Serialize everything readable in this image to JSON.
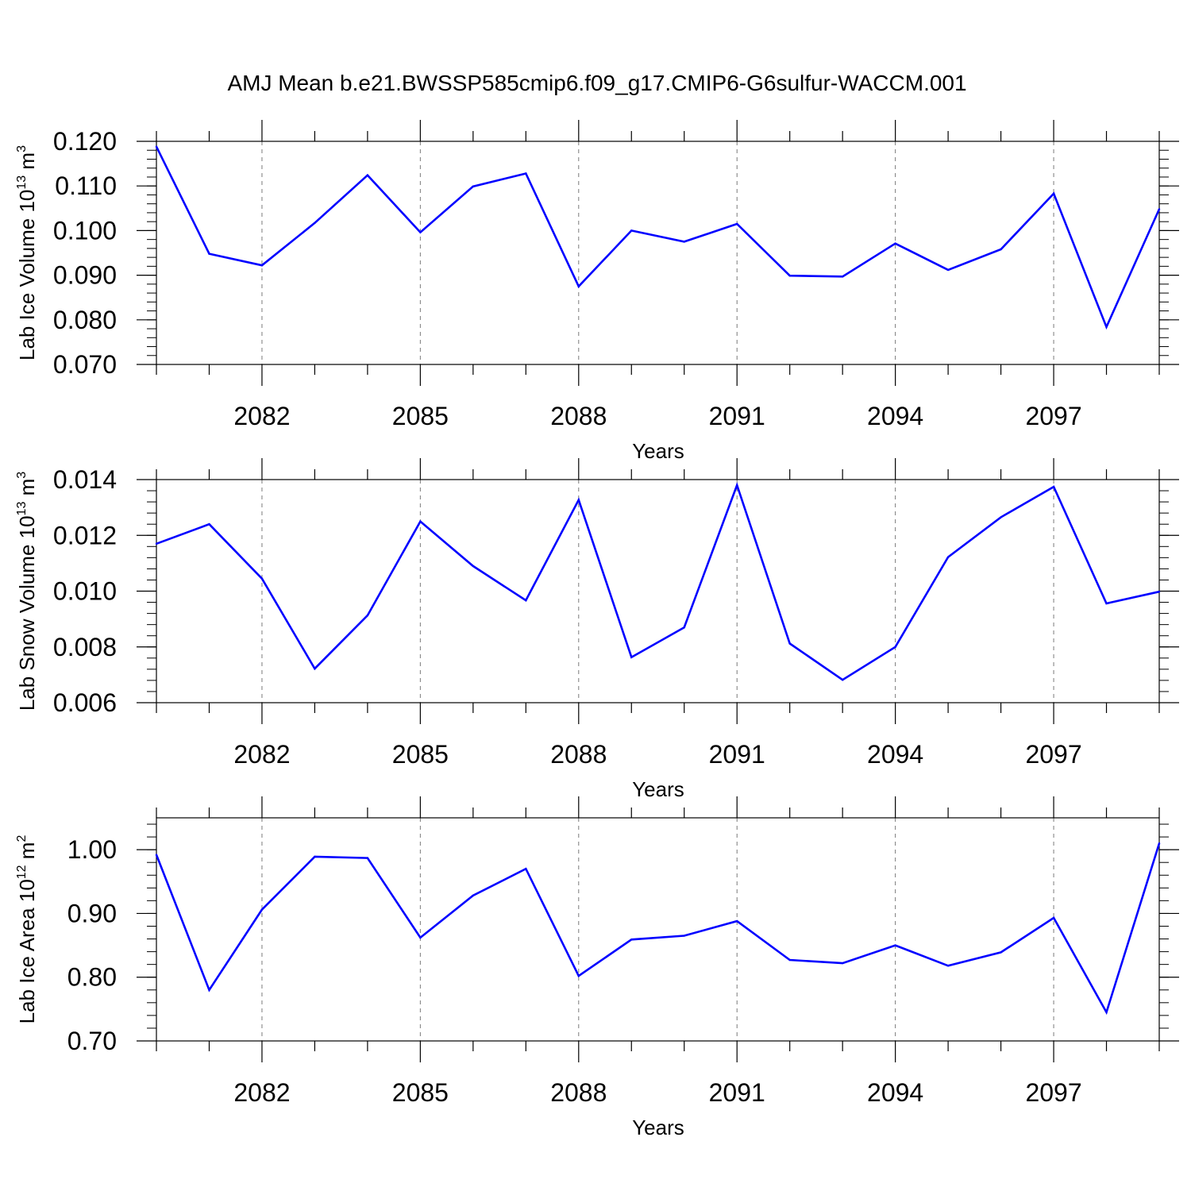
{
  "figure": {
    "title": "AMJ Mean b.e21.BWSSP585cmip6.f09_g17.CMIP6-G6sulfur-WACCM.001"
  },
  "chart_data": [
    {
      "type": "line",
      "ylabel": {
        "text": "Lab Ice Volume 10",
        "exponent": "13",
        "unit": " m",
        "unit_exponent": "3"
      },
      "xlabel": "Years",
      "x": [
        2080,
        2081,
        2082,
        2083,
        2084,
        2085,
        2086,
        2087,
        2088,
        2089,
        2090,
        2091,
        2092,
        2093,
        2094,
        2095,
        2096,
        2097,
        2098,
        2099
      ],
      "series": [
        {
          "color": "#0000ff",
          "values": [
            0.1188,
            0.0948,
            0.0922,
            0.1017,
            0.1124,
            0.0996,
            0.1099,
            0.1128,
            0.0875,
            0.1,
            0.0975,
            0.1015,
            0.0899,
            0.0897,
            0.0971,
            0.0912,
            0.0958,
            0.1083,
            0.0784,
            0.1048
          ]
        }
      ],
      "ylim": [
        0.07,
        0.12
      ],
      "xlim": [
        2080,
        2099
      ],
      "yticks": [
        "0.070",
        "0.080",
        "0.090",
        "0.100",
        "0.110",
        "0.120"
      ],
      "ytick_values": [
        0.07,
        0.08,
        0.09,
        0.1,
        0.11,
        0.12
      ],
      "xticks": [
        "2082",
        "2085",
        "2088",
        "2091",
        "2094",
        "2097"
      ],
      "xtick_values": [
        2082,
        2085,
        2088,
        2091,
        2094,
        2097
      ],
      "grid": "x-dashed"
    },
    {
      "type": "line",
      "ylabel": {
        "text": "Lab Snow Volume 10",
        "exponent": "13",
        "unit": " m",
        "unit_exponent": "3"
      },
      "xlabel": "Years",
      "x": [
        2080,
        2081,
        2082,
        2083,
        2084,
        2085,
        2086,
        2087,
        2088,
        2089,
        2090,
        2091,
        2092,
        2093,
        2094,
        2095,
        2096,
        2097,
        2098,
        2099
      ],
      "series": [
        {
          "color": "#0000ff",
          "values": [
            0.0117,
            0.0124,
            0.01045,
            0.00722,
            0.00913,
            0.0125,
            0.0109,
            0.00967,
            0.01327,
            0.00763,
            0.0087,
            0.0138,
            0.00812,
            0.00682,
            0.008,
            0.01122,
            0.01265,
            0.01374,
            0.00956,
            0.00998
          ]
        }
      ],
      "ylim": [
        0.006,
        0.014
      ],
      "xlim": [
        2080,
        2099
      ],
      "yticks": [
        "0.006",
        "0.008",
        "0.010",
        "0.012",
        "0.014"
      ],
      "ytick_values": [
        0.006,
        0.008,
        0.01,
        0.012,
        0.014
      ],
      "xticks": [
        "2082",
        "2085",
        "2088",
        "2091",
        "2094",
        "2097"
      ],
      "xtick_values": [
        2082,
        2085,
        2088,
        2091,
        2094,
        2097
      ],
      "grid": "x-dashed"
    },
    {
      "type": "line",
      "ylabel": {
        "text": "Lab Ice Area 10",
        "exponent": "12",
        "unit": " m",
        "unit_exponent": "2"
      },
      "xlabel": "Years",
      "x": [
        2080,
        2081,
        2082,
        2083,
        2084,
        2085,
        2086,
        2087,
        2088,
        2089,
        2090,
        2091,
        2092,
        2093,
        2094,
        2095,
        2096,
        2097,
        2098,
        2099
      ],
      "series": [
        {
          "color": "#0000ff",
          "values": [
            0.992,
            0.78,
            0.906,
            0.989,
            0.987,
            0.862,
            0.928,
            0.97,
            0.802,
            0.859,
            0.865,
            0.888,
            0.827,
            0.822,
            0.85,
            0.818,
            0.839,
            0.893,
            0.745,
            1.01
          ]
        }
      ],
      "ylim": [
        0.7,
        1.05
      ],
      "xlim": [
        2080,
        2099
      ],
      "yticks": [
        "0.70",
        "0.80",
        "0.90",
        "1.00"
      ],
      "ytick_values": [
        0.7,
        0.8,
        0.9,
        1.0
      ],
      "xticks": [
        "2082",
        "2085",
        "2088",
        "2091",
        "2094",
        "2097"
      ],
      "xtick_values": [
        2082,
        2085,
        2088,
        2091,
        2094,
        2097
      ],
      "grid": "x-dashed"
    }
  ]
}
